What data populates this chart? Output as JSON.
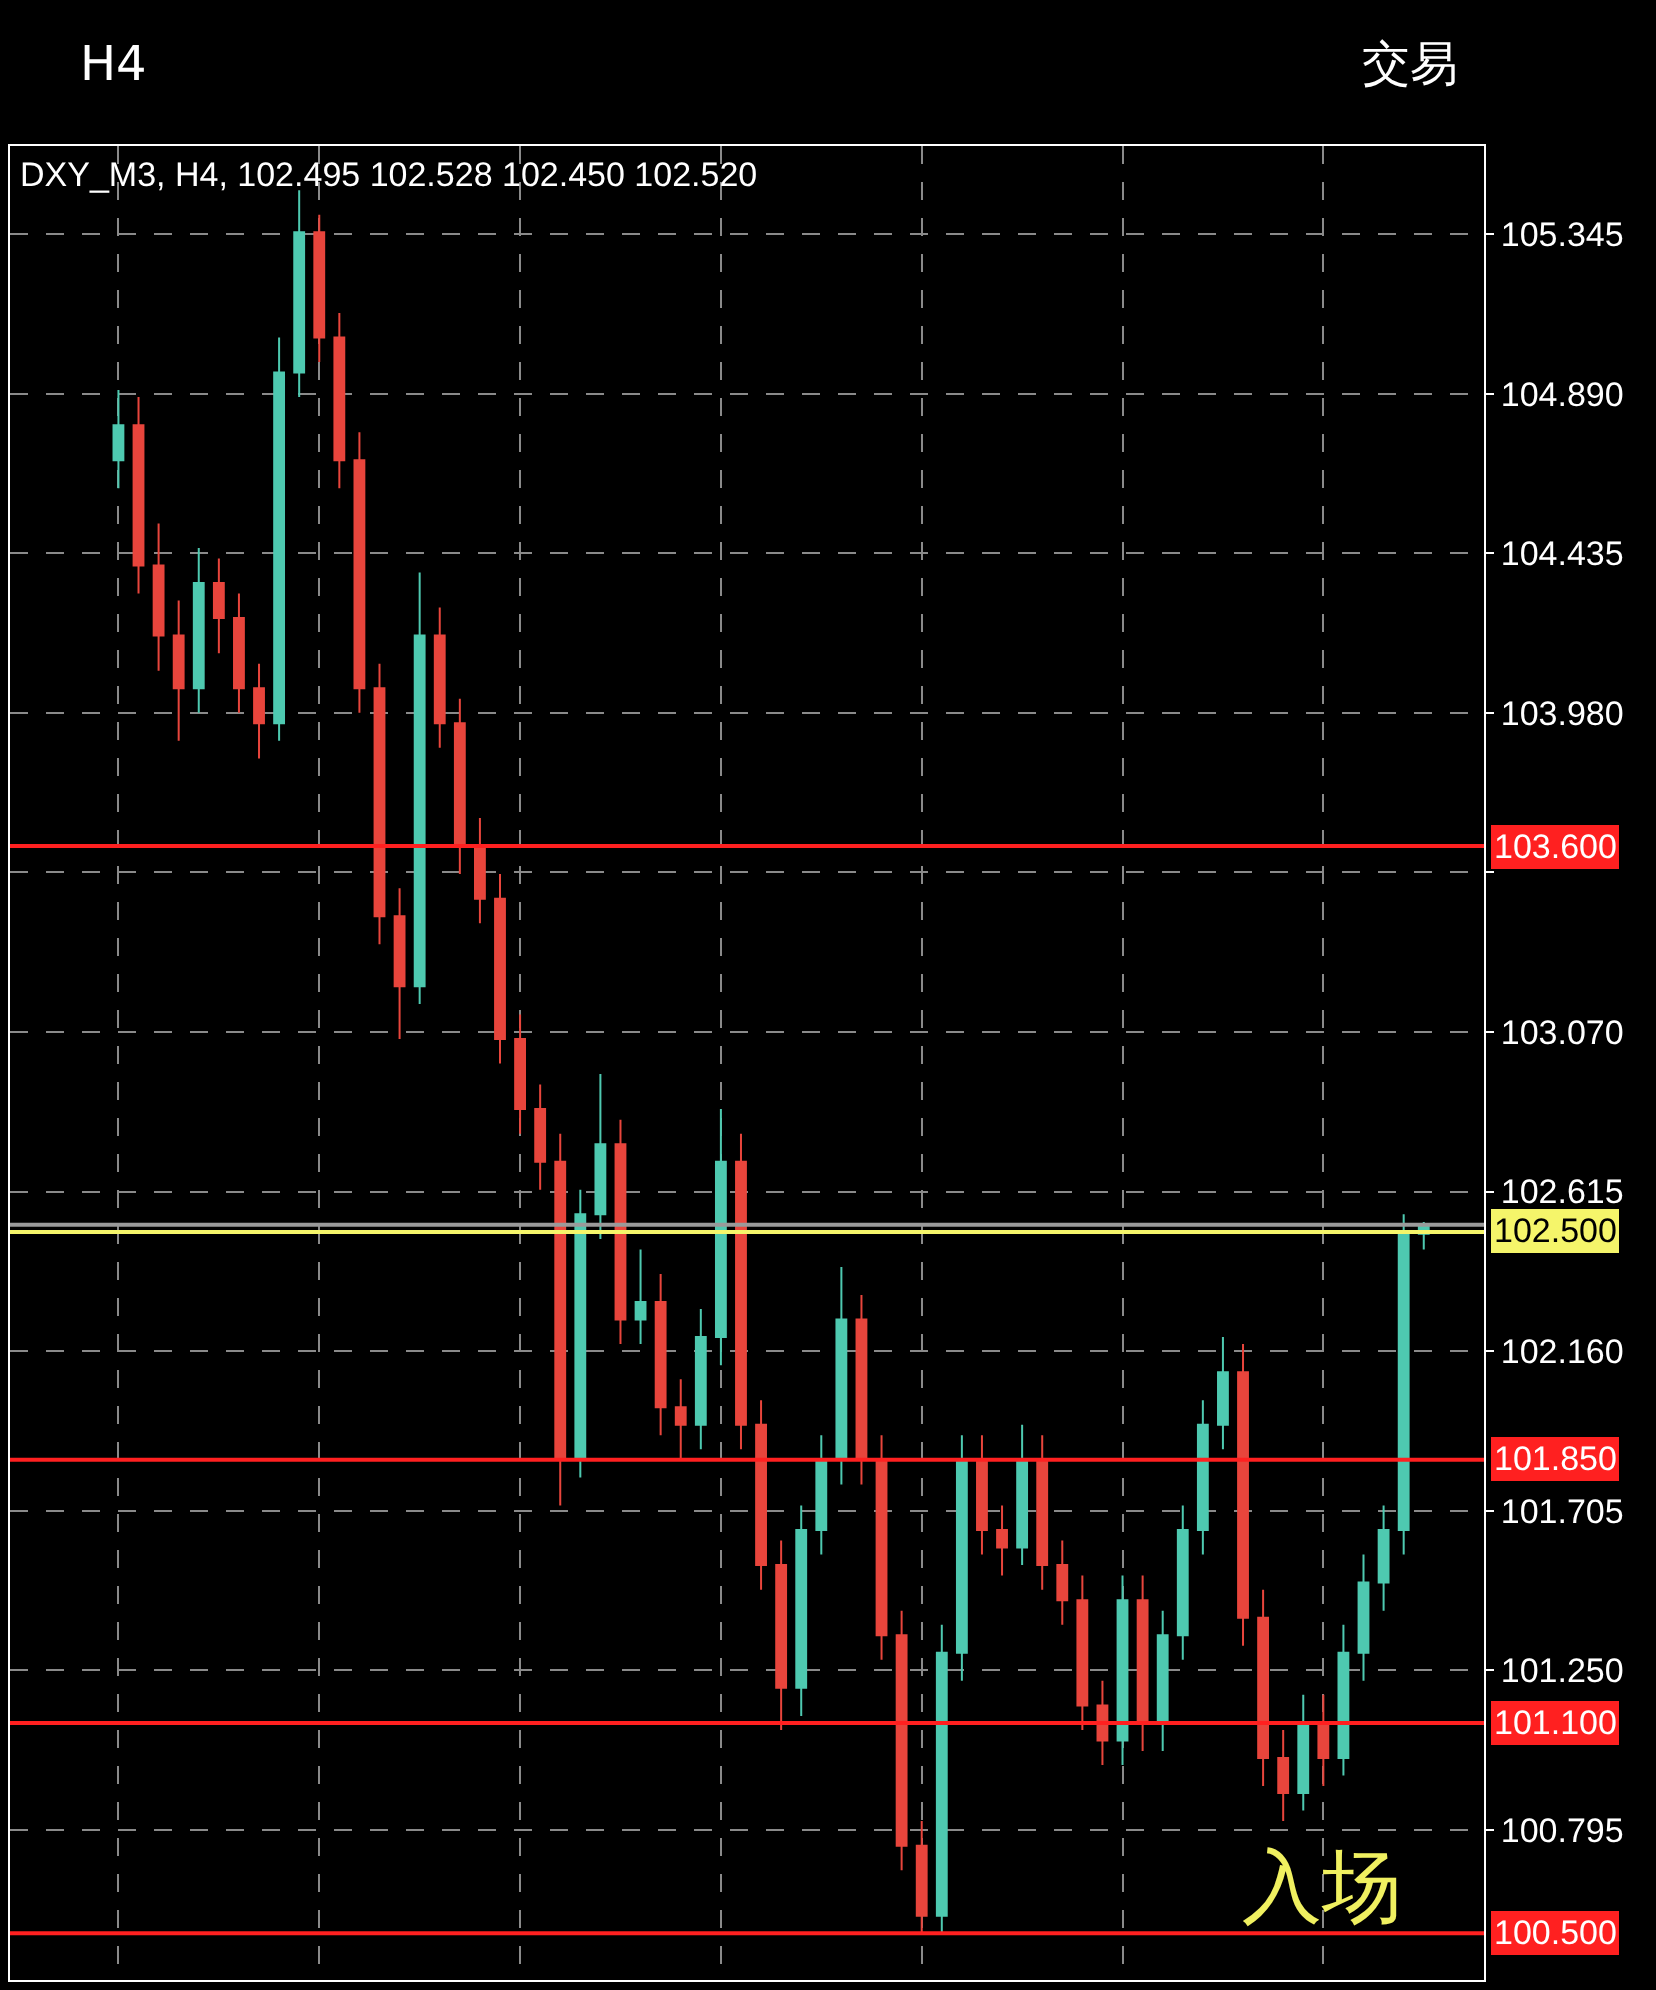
{
  "chart_data": {
    "type": "candlestick",
    "title": "DXY_M3, H4, 102.495 102.528 102.450 102.520",
    "annotations": [
      "H4",
      "交易",
      "入场"
    ],
    "categories": [
      null,
      null,
      null,
      null,
      null,
      null,
      null,
      null,
      null,
      null,
      null,
      null,
      null,
      null,
      null,
      null,
      null,
      null,
      null,
      null,
      null,
      null,
      null,
      null,
      null,
      null,
      null,
      null,
      null,
      null,
      null,
      null,
      null,
      null,
      null,
      null,
      null,
      null,
      null,
      null,
      null,
      null,
      null,
      null,
      null,
      null,
      null,
      null,
      null,
      null,
      null,
      null,
      null,
      null,
      null,
      null,
      null,
      null,
      null,
      null,
      null,
      null,
      null,
      null,
      null,
      null
    ],
    "colors": [
      "#4ec9b0",
      "#e8453c",
      "#e8453c",
      "#e8453c",
      "#4ec9b0",
      "#e8453c",
      "#e8453c",
      "#e8453c",
      "#4ec9b0",
      "#4ec9b0",
      "#e8453c",
      "#e8453c",
      "#e8453c",
      "#e8453c",
      "#e8453c",
      "#4ec9b0",
      "#e8453c",
      "#e8453c",
      "#e8453c",
      "#e8453c",
      "#e8453c",
      "#e8453c",
      "#e8453c",
      "#4ec9b0",
      "#4ec9b0",
      "#e8453c",
      "#4ec9b0",
      "#e8453c",
      "#e8453c",
      "#4ec9b0",
      "#4ec9b0",
      "#e8453c",
      "#e8453c",
      "#e8453c",
      "#4ec9b0",
      "#4ec9b0",
      "#4ec9b0",
      "#e8453c",
      "#e8453c",
      "#e8453c",
      "#e8453c",
      "#4ec9b0",
      "#4ec9b0",
      "#e8453c",
      "#e8453c",
      "#4ec9b0",
      "#e8453c",
      "#e8453c",
      "#e8453c",
      "#e8453c",
      "#4ec9b0",
      "#e8453c",
      "#4ec9b0",
      "#4ec9b0",
      "#4ec9b0",
      "#4ec9b0",
      "#e8453c",
      "#e8453c",
      "#e8453c",
      "#4ec9b0",
      "#e8453c",
      "#4ec9b0",
      "#4ec9b0",
      "#4ec9b0",
      "#4ec9b0",
      "#4ec9b0"
    ],
    "ohlc": [
      [
        104.7,
        104.9,
        104.62,
        104.8
      ],
      [
        104.8,
        104.88,
        104.32,
        104.4
      ],
      [
        104.4,
        104.52,
        104.1,
        104.2
      ],
      [
        104.2,
        104.3,
        103.9,
        104.05
      ],
      [
        104.05,
        104.45,
        103.98,
        104.35
      ],
      [
        104.35,
        104.42,
        104.15,
        104.25
      ],
      [
        104.25,
        104.32,
        103.98,
        104.05
      ],
      [
        104.05,
        104.12,
        103.85,
        103.95
      ],
      [
        103.95,
        105.05,
        103.9,
        104.95
      ],
      [
        104.95,
        105.47,
        104.88,
        105.35
      ],
      [
        105.35,
        105.4,
        104.98,
        105.05
      ],
      [
        105.05,
        105.12,
        104.62,
        104.7
      ],
      [
        104.7,
        104.78,
        103.98,
        104.05
      ],
      [
        104.05,
        104.12,
        103.32,
        103.4
      ],
      [
        103.4,
        103.48,
        103.05,
        103.2
      ],
      [
        103.2,
        104.38,
        103.15,
        104.2
      ],
      [
        104.2,
        104.28,
        103.88,
        103.95
      ],
      [
        103.95,
        104.02,
        103.52,
        103.6
      ],
      [
        103.6,
        103.68,
        103.38,
        103.45
      ],
      [
        103.45,
        103.52,
        102.98,
        103.05
      ],
      [
        103.05,
        103.12,
        102.78,
        102.85
      ],
      [
        102.85,
        102.92,
        102.62,
        102.7
      ],
      [
        102.7,
        102.78,
        101.72,
        101.85
      ],
      [
        101.85,
        102.62,
        101.8,
        102.55
      ],
      [
        102.55,
        102.95,
        102.48,
        102.75
      ],
      [
        102.75,
        102.82,
        102.18,
        102.25
      ],
      [
        102.25,
        102.45,
        102.18,
        102.3
      ],
      [
        102.3,
        102.38,
        101.92,
        102.0
      ],
      [
        102.0,
        102.08,
        101.85,
        101.95
      ],
      [
        101.95,
        102.28,
        101.88,
        102.2
      ],
      [
        102.2,
        102.85,
        102.12,
        102.7
      ],
      [
        102.7,
        102.78,
        101.88,
        101.95
      ],
      [
        101.95,
        102.02,
        101.48,
        101.55
      ],
      [
        101.55,
        101.62,
        101.08,
        101.2
      ],
      [
        101.2,
        101.72,
        101.12,
        101.65
      ],
      [
        101.65,
        101.92,
        101.58,
        101.85
      ],
      [
        101.85,
        102.4,
        101.78,
        102.25
      ],
      [
        102.25,
        102.32,
        101.78,
        101.85
      ],
      [
        101.85,
        101.92,
        101.28,
        101.35
      ],
      [
        101.35,
        101.42,
        100.68,
        100.75
      ],
      [
        100.75,
        100.82,
        100.5,
        100.55
      ],
      [
        100.55,
        101.38,
        100.5,
        101.3
      ],
      [
        101.3,
        101.92,
        101.22,
        101.85
      ],
      [
        101.85,
        101.92,
        101.58,
        101.65
      ],
      [
        101.65,
        101.72,
        101.52,
        101.6
      ],
      [
        101.6,
        101.95,
        101.55,
        101.85
      ],
      [
        101.85,
        101.92,
        101.48,
        101.55
      ],
      [
        101.55,
        101.62,
        101.38,
        101.45
      ],
      [
        101.45,
        101.52,
        101.08,
        101.15
      ],
      [
        101.15,
        101.22,
        100.98,
        101.05
      ],
      [
        101.05,
        101.52,
        100.98,
        101.45
      ],
      [
        101.45,
        101.52,
        101.02,
        101.1
      ],
      [
        101.1,
        101.42,
        101.02,
        101.35
      ],
      [
        101.35,
        101.72,
        101.28,
        101.65
      ],
      [
        101.65,
        102.02,
        101.58,
        101.95
      ],
      [
        101.95,
        102.2,
        101.88,
        102.1
      ],
      [
        102.1,
        102.18,
        101.32,
        101.4
      ],
      [
        101.4,
        101.48,
        100.92,
        101.0
      ],
      [
        101.0,
        101.08,
        100.82,
        100.9
      ],
      [
        100.9,
        101.18,
        100.85,
        101.1
      ],
      [
        101.1,
        101.18,
        100.92,
        101.0
      ],
      [
        101.0,
        101.38,
        100.95,
        101.3
      ],
      [
        101.3,
        101.58,
        101.22,
        101.5
      ],
      [
        101.5,
        101.72,
        101.42,
        101.65
      ],
      [
        101.65,
        102.55,
        101.58,
        102.495
      ],
      [
        102.495,
        102.528,
        102.45,
        102.52
      ]
    ],
    "ylim": [
      100.367,
      105.596
    ],
    "yticks": [
      100.795,
      {
        "value": 101.25,
        "label": "101.250"
      },
      101.705,
      {
        "value": 102.16,
        "label": "102.160"
      },
      102.615,
      {
        "value": 103.07,
        "label": "103.070"
      },
      {
        "value": 103.525,
        "label": null
      },
      {
        "value": 103.98,
        "label": "103.980"
      },
      104.435,
      {
        "value": 104.89,
        "label": "104.890"
      },
      105.345
    ],
    "grid": true,
    "ref_lines": [
      {
        "axis": "y",
        "value": 103.6,
        "label": "103.600",
        "color": "#ff2020"
      },
      {
        "axis": "y",
        "value": 102.52,
        "label": null,
        "color": "#9a9a9a"
      },
      {
        "axis": "y",
        "value": 102.5,
        "label": "102.500",
        "color": "#f5f56a"
      },
      {
        "axis": "y",
        "value": 101.85,
        "label": "101.850",
        "color": "#ff2020"
      },
      {
        "axis": "y",
        "value": 101.1,
        "label": "101.100",
        "color": "#ff2020"
      },
      {
        "axis": "y",
        "value": 100.5,
        "label": "100.500",
        "color": "#ff2020"
      }
    ]
  }
}
